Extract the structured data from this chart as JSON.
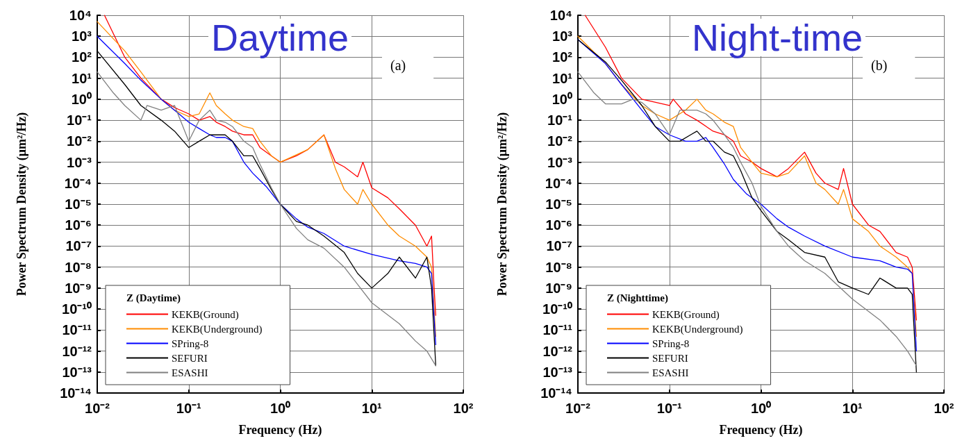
{
  "chart_data": [
    {
      "type": "line",
      "xlabel": "Frequency (Hz)",
      "ylabel": "Power Spectrum Density (μm²/Hz)",
      "legend_title": "Z (Daytime)",
      "annotations": [
        "Daytime",
        "(a)"
      ],
      "log": "xy",
      "grid": true,
      "legend": "bottom left",
      "marker": "none",
      "line_style": "solid",
      "xlim": [
        0.01,
        100
      ],
      "xticks": [
        {
          "value": 0.01,
          "label": "10⁻²"
        },
        {
          "value": 0.1,
          "label": "10⁻¹"
        },
        {
          "value": 1,
          "label": "10⁰"
        },
        {
          "value": 10,
          "label": "10¹"
        },
        {
          "value": 100,
          "label": "10²"
        }
      ],
      "ylim": [
        1e-14,
        10000
      ],
      "yticks": [
        {
          "value": 1e-14,
          "label": "10⁻¹⁴"
        },
        {
          "value": 1e-13,
          "label": "10⁻¹³"
        },
        {
          "value": 1e-12,
          "label": "10⁻¹²"
        },
        {
          "value": 1e-11,
          "label": "10⁻¹¹"
        },
        {
          "value": 1e-10,
          "label": "10⁻¹⁰"
        },
        {
          "value": 1e-09,
          "label": "10⁻⁹"
        },
        {
          "value": 1e-08,
          "label": "10⁻⁸"
        },
        {
          "value": 1e-07,
          "label": "10⁻⁷"
        },
        {
          "value": 1e-06,
          "label": "10⁻⁶"
        },
        {
          "value": 1e-05,
          "label": "10⁻⁵"
        },
        {
          "value": 0.0001,
          "label": "10⁻⁴"
        },
        {
          "value": 0.001,
          "label": "10⁻³"
        },
        {
          "value": 0.01,
          "label": "10⁻²"
        },
        {
          "value": 0.1,
          "label": "10⁻¹"
        },
        {
          "value": 1,
          "label": "10⁰"
        },
        {
          "value": 10,
          "label": "10¹"
        },
        {
          "value": 100,
          "label": "10²"
        },
        {
          "value": 1000,
          "label": "10³"
        },
        {
          "value": 10000,
          "label": "10⁴"
        }
      ],
      "series": [
        {
          "name": "KEKB(Ground)",
          "color": "#ff0000",
          "x": [
            0.012,
            0.02,
            0.03,
            0.05,
            0.07,
            0.1,
            0.13,
            0.17,
            0.2,
            0.25,
            0.3,
            0.4,
            0.5,
            0.6,
            0.8,
            1,
            1.5,
            2,
            3,
            4,
            5,
            7,
            8,
            10,
            15,
            20,
            30,
            40,
            45,
            48,
            50
          ],
          "values": [
            10000,
            100,
            10,
            1,
            0.4,
            0.2,
            0.1,
            0.15,
            0.08,
            0.05,
            0.03,
            0.02,
            0.02,
            0.005,
            0.002,
            0.001,
            0.002,
            0.004,
            0.02,
            0.001,
            0.0006,
            0.0002,
            0.001,
            6e-05,
            2e-05,
            6e-06,
            1e-06,
            1e-07,
            3e-07,
            1e-09,
            5e-11
          ]
        },
        {
          "name": "KEKB(Underground)",
          "color": "#ff8c00",
          "x": [
            0.01,
            0.02,
            0.03,
            0.05,
            0.07,
            0.1,
            0.13,
            0.17,
            0.2,
            0.25,
            0.3,
            0.4,
            0.5,
            0.6,
            0.8,
            1,
            2,
            3,
            4,
            5,
            7,
            8,
            10,
            15,
            20,
            30,
            40,
            45,
            50
          ],
          "values": [
            5000,
            200,
            20,
            1,
            0.3,
            0.15,
            0.2,
            2,
            0.5,
            0.2,
            0.1,
            0.05,
            0.04,
            0.01,
            0.002,
            0.001,
            0.004,
            0.02,
            0.0005,
            5e-05,
            1e-05,
            5e-05,
            1e-05,
            1e-06,
            3e-07,
            1e-07,
            3e-08,
            1e-08,
            5e-12
          ]
        },
        {
          "name": "SPring-8",
          "color": "#0000ff",
          "x": [
            0.01,
            0.02,
            0.03,
            0.05,
            0.07,
            0.1,
            0.13,
            0.17,
            0.2,
            0.25,
            0.3,
            0.4,
            0.5,
            0.7,
            1,
            1.5,
            2,
            3,
            5,
            10,
            20,
            30,
            40,
            45,
            50
          ],
          "values": [
            1000,
            50,
            8,
            1,
            0.3,
            0.08,
            0.04,
            0.02,
            0.015,
            0.015,
            0.01,
            0.001,
            0.0003,
            7e-05,
            1e-05,
            2e-06,
            8e-07,
            4e-07,
            1e-07,
            4e-08,
            2e-08,
            1.5e-08,
            1e-08,
            5e-09,
            2e-12
          ]
        },
        {
          "name": "SEFURI",
          "color": "#000000",
          "x": [
            0.01,
            0.02,
            0.03,
            0.05,
            0.07,
            0.1,
            0.13,
            0.17,
            0.2,
            0.25,
            0.3,
            0.4,
            0.5,
            0.6,
            0.8,
            1,
            1.5,
            2,
            3,
            5,
            7,
            10,
            15,
            20,
            30,
            40,
            45,
            50
          ],
          "values": [
            200,
            5,
            0.5,
            0.1,
            0.03,
            0.005,
            0.01,
            0.02,
            0.02,
            0.02,
            0.01,
            0.002,
            0.002,
            0.0005,
            5e-05,
            1e-05,
            1.5e-06,
            1e-06,
            3e-07,
            5e-08,
            5e-09,
            1e-09,
            5e-09,
            3e-08,
            3e-09,
            3e-08,
            1e-09,
            2e-13
          ]
        },
        {
          "name": "ESASHI",
          "color": "#808080",
          "x": [
            0.01,
            0.015,
            0.02,
            0.03,
            0.035,
            0.05,
            0.07,
            0.1,
            0.13,
            0.17,
            0.2,
            0.25,
            0.3,
            0.4,
            0.5,
            0.6,
            0.8,
            1,
            1.5,
            2,
            3,
            5,
            10,
            20,
            30,
            40,
            50
          ],
          "values": [
            20,
            2,
            0.5,
            0.1,
            0.5,
            0.3,
            0.5,
            0.01,
            0.1,
            0.3,
            0.1,
            0.08,
            0.05,
            0.01,
            0.005,
            0.0008,
            6e-05,
            1e-05,
            7e-07,
            2e-07,
            8e-08,
            1e-08,
            2e-10,
            2e-11,
            3e-12,
            1e-12,
            2e-13
          ]
        }
      ]
    },
    {
      "type": "line",
      "xlabel": "Frequency (Hz)",
      "ylabel": "Power Spectrum Density (μm²/Hz)",
      "legend_title": "Z (Nighttime)",
      "annotations": [
        "Night-time",
        "(b)"
      ],
      "log": "xy",
      "grid": true,
      "legend": "bottom left",
      "marker": "none",
      "line_style": "solid",
      "xlim": [
        0.01,
        100
      ],
      "xticks": [
        {
          "value": 0.01,
          "label": "10⁻²"
        },
        {
          "value": 0.1,
          "label": "10⁻¹"
        },
        {
          "value": 1,
          "label": "10⁰"
        },
        {
          "value": 10,
          "label": "10¹"
        },
        {
          "value": 100,
          "label": "10²"
        }
      ],
      "ylim": [
        1e-14,
        10000
      ],
      "yticks": [
        {
          "value": 1e-14,
          "label": "10⁻¹⁴"
        },
        {
          "value": 1e-13,
          "label": "10⁻¹³"
        },
        {
          "value": 1e-12,
          "label": "10⁻¹²"
        },
        {
          "value": 1e-11,
          "label": "10⁻¹¹"
        },
        {
          "value": 1e-10,
          "label": "10⁻¹⁰"
        },
        {
          "value": 1e-09,
          "label": "10⁻⁹"
        },
        {
          "value": 1e-08,
          "label": "10⁻⁸"
        },
        {
          "value": 1e-07,
          "label": "10⁻⁷"
        },
        {
          "value": 1e-06,
          "label": "10⁻⁶"
        },
        {
          "value": 1e-05,
          "label": "10⁻⁵"
        },
        {
          "value": 0.0001,
          "label": "10⁻⁴"
        },
        {
          "value": 0.001,
          "label": "10⁻³"
        },
        {
          "value": 0.01,
          "label": "10⁻²"
        },
        {
          "value": 0.1,
          "label": "10⁻¹"
        },
        {
          "value": 1,
          "label": "10⁰"
        },
        {
          "value": 10,
          "label": "10¹"
        },
        {
          "value": 100,
          "label": "10²"
        },
        {
          "value": 1000,
          "label": "10³"
        },
        {
          "value": 10000,
          "label": "10⁴"
        }
      ],
      "series": [
        {
          "name": "KEKB(Ground)",
          "color": "#ff0000",
          "x": [
            0.012,
            0.02,
            0.03,
            0.05,
            0.1,
            0.11,
            0.15,
            0.2,
            0.3,
            0.4,
            0.5,
            0.6,
            0.8,
            1,
            1.5,
            2,
            3,
            4,
            5,
            7,
            8,
            10,
            15,
            20,
            30,
            40,
            45,
            50
          ],
          "values": [
            10000,
            300,
            10,
            1,
            0.5,
            1,
            0.2,
            0.1,
            0.03,
            0.02,
            0.01,
            0.002,
            0.001,
            0.0005,
            0.0002,
            0.0005,
            0.003,
            0.0003,
            0.0001,
            5e-05,
            0.0005,
            1e-05,
            1e-06,
            5e-07,
            5e-08,
            3e-08,
            1e-08,
            3e-11
          ]
        },
        {
          "name": "KEKB(Underground)",
          "color": "#ff8c00",
          "x": [
            0.01,
            0.02,
            0.03,
            0.05,
            0.07,
            0.1,
            0.15,
            0.2,
            0.25,
            0.3,
            0.4,
            0.5,
            0.6,
            0.8,
            1,
            1.5,
            2,
            3,
            4,
            5,
            7,
            8,
            10,
            15,
            20,
            30,
            40,
            45,
            50
          ],
          "values": [
            1000,
            50,
            5,
            0.5,
            0.2,
            0.1,
            0.3,
            1,
            0.3,
            0.2,
            0.08,
            0.05,
            0.005,
            0.001,
            0.0003,
            0.0002,
            0.0003,
            0.002,
            0.0001,
            5e-05,
            1e-05,
            5e-05,
            2e-06,
            5e-07,
            1e-07,
            3e-08,
            1e-08,
            5e-09,
            5e-12
          ]
        },
        {
          "name": "SPring-8",
          "color": "#0000ff",
          "x": [
            0.01,
            0.02,
            0.03,
            0.05,
            0.07,
            0.1,
            0.15,
            0.2,
            0.25,
            0.3,
            0.4,
            0.5,
            0.7,
            1,
            1.5,
            2,
            3,
            5,
            10,
            20,
            30,
            40,
            45,
            50
          ],
          "values": [
            700,
            50,
            5,
            0.3,
            0.05,
            0.02,
            0.01,
            0.01,
            0.015,
            0.005,
            0.0008,
            0.00015,
            3e-05,
            1e-05,
            2e-06,
            8e-07,
            3e-07,
            1e-07,
            3e-08,
            2e-08,
            1e-08,
            8e-09,
            5e-09,
            1e-12
          ]
        },
        {
          "name": "SEFURI",
          "color": "#000000",
          "x": [
            0.01,
            0.02,
            0.03,
            0.05,
            0.07,
            0.1,
            0.13,
            0.17,
            0.2,
            0.25,
            0.3,
            0.4,
            0.5,
            0.6,
            0.8,
            1,
            1.5,
            2,
            3,
            5,
            7,
            10,
            15,
            20,
            30,
            40,
            45,
            50
          ],
          "values": [
            700,
            60,
            8,
            0.5,
            0.05,
            0.01,
            0.01,
            0.02,
            0.03,
            0.01,
            0.01,
            0.003,
            0.002,
            0.0004,
            2e-05,
            5e-06,
            5e-07,
            2e-07,
            5e-08,
            3e-08,
            2e-09,
            1e-09,
            5e-10,
            3e-09,
            1e-09,
            1e-09,
            5e-10,
            1e-13
          ]
        },
        {
          "name": "ESASHI",
          "color": "#808080",
          "x": [
            0.01,
            0.015,
            0.02,
            0.03,
            0.04,
            0.05,
            0.07,
            0.1,
            0.13,
            0.2,
            0.25,
            0.3,
            0.4,
            0.5,
            0.6,
            0.8,
            1,
            1.5,
            2,
            3,
            5,
            10,
            20,
            30,
            40,
            50
          ],
          "values": [
            20,
            2,
            0.6,
            0.6,
            1,
            0.7,
            0.2,
            0.02,
            0.3,
            0.3,
            0.2,
            0.1,
            0.02,
            0.005,
            0.001,
            0.0001,
            8e-06,
            5e-07,
            1e-07,
            2e-08,
            5e-09,
            3e-10,
            3e-11,
            5e-12,
            1e-12,
            2e-13
          ]
        }
      ]
    }
  ]
}
